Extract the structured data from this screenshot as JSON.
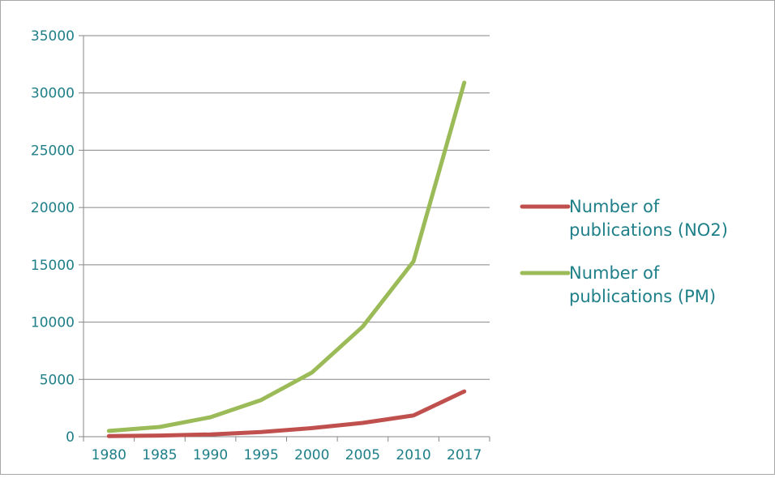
{
  "chart_data": {
    "type": "line",
    "title": "",
    "xlabel": "",
    "ylabel": "",
    "categories": [
      "1980",
      "1985",
      "1990",
      "1995",
      "2000",
      "2005",
      "2010",
      "2017"
    ],
    "ylim": [
      0,
      35000
    ],
    "yticks": [
      "0",
      "5000",
      "10000",
      "15000",
      "20000",
      "25000",
      "30000",
      "35000"
    ],
    "grid": true,
    "legend_position": "right",
    "series": [
      {
        "name_lines": [
          "Number of",
          "publications (NO2)"
        ],
        "color": "#c0504d",
        "values": [
          50,
          100,
          200,
          400,
          750,
          1200,
          1850,
          3950
        ]
      },
      {
        "name_lines": [
          "Number of",
          "publications (PM)"
        ],
        "color": "#9bbb59",
        "values": [
          500,
          850,
          1700,
          3200,
          5600,
          9600,
          15300,
          30900
        ]
      }
    ],
    "colors": {
      "text": "#1e7f88",
      "grid": "#868686"
    }
  }
}
